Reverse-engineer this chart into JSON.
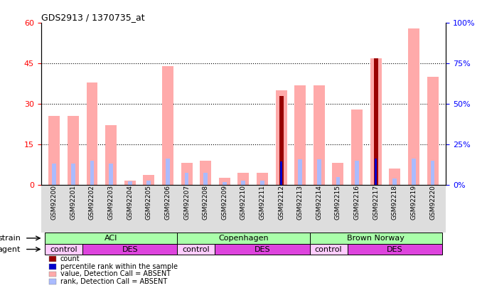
{
  "title": "GDS2913 / 1370735_at",
  "samples": [
    "GSM92200",
    "GSM92201",
    "GSM92202",
    "GSM92203",
    "GSM92204",
    "GSM92205",
    "GSM92206",
    "GSM92207",
    "GSM92208",
    "GSM92209",
    "GSM92210",
    "GSM92211",
    "GSM92212",
    "GSM92213",
    "GSM92214",
    "GSM92215",
    "GSM92216",
    "GSM92217",
    "GSM92218",
    "GSM92219",
    "GSM92220"
  ],
  "value_absent": [
    25.5,
    25.5,
    38.0,
    22.0,
    1.5,
    3.5,
    44.0,
    8.0,
    9.0,
    2.5,
    4.5,
    4.5,
    35.0,
    37.0,
    37.0,
    8.0,
    28.0,
    47.0,
    6.0,
    58.0,
    40.0
  ],
  "rank_absent": [
    13.0,
    13.0,
    15.0,
    13.0,
    2.0,
    2.5,
    16.0,
    7.5,
    7.5,
    1.5,
    2.5,
    2.5,
    14.5,
    15.5,
    15.5,
    4.5,
    15.0,
    16.0,
    4.0,
    16.0,
    15.0
  ],
  "count": [
    0,
    0,
    0,
    0,
    0,
    0,
    0,
    0,
    0,
    0,
    0,
    0,
    33.0,
    0,
    0,
    0,
    0,
    47.0,
    0,
    0,
    0
  ],
  "pct_rank": [
    0,
    0,
    0,
    0,
    0,
    0,
    0,
    0,
    0,
    0,
    0,
    0,
    14.5,
    0,
    0,
    0,
    0,
    16.0,
    0,
    0,
    0
  ],
  "ylim_left": [
    0,
    60
  ],
  "ylim_right": [
    0,
    100
  ],
  "yticks_left": [
    0,
    15,
    30,
    45,
    60
  ],
  "yticks_right": [
    0,
    25,
    50,
    75,
    100
  ],
  "strain_groups": [
    {
      "label": "ACI",
      "start": 0,
      "end": 6
    },
    {
      "label": "Copenhagen",
      "start": 7,
      "end": 13
    },
    {
      "label": "Brown Norway",
      "start": 14,
      "end": 20
    }
  ],
  "agent_groups": [
    {
      "label": "control",
      "start": 0,
      "end": 1,
      "color": "#ffccff"
    },
    {
      "label": "DES",
      "start": 2,
      "end": 6,
      "color": "#dd44dd"
    },
    {
      "label": "control",
      "start": 7,
      "end": 8,
      "color": "#ffccff"
    },
    {
      "label": "DES",
      "start": 9,
      "end": 13,
      "color": "#dd44dd"
    },
    {
      "label": "control",
      "start": 14,
      "end": 15,
      "color": "#ffccff"
    },
    {
      "label": "DES",
      "start": 16,
      "end": 20,
      "color": "#dd44dd"
    }
  ],
  "color_value_absent": "#ffaaaa",
  "color_rank_absent": "#aabbff",
  "color_count": "#990000",
  "color_pct_rank": "#0000cc",
  "strain_color": "#aaffaa",
  "bar_width": 0.6,
  "rank_bar_width": 0.22,
  "count_bar_width": 0.22,
  "pct_bar_width": 0.1
}
